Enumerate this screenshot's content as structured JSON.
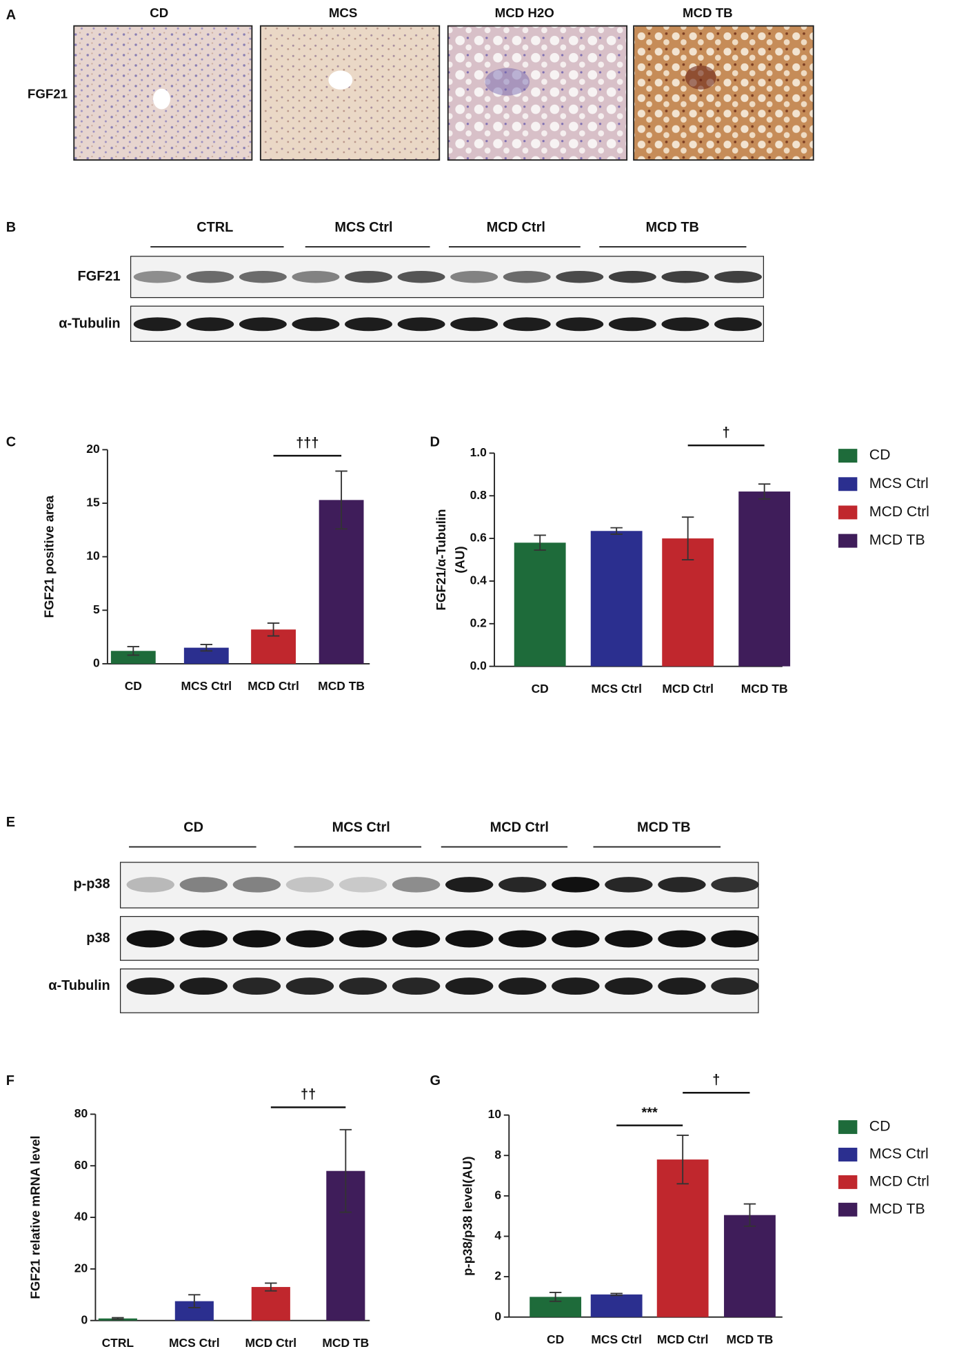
{
  "panel_labels": [
    "A",
    "B",
    "C",
    "D",
    "E",
    "F",
    "G"
  ],
  "histology": {
    "columns": [
      "CD",
      "MCS",
      "MCD H2O",
      "MCD TB"
    ],
    "row_label": "FGF21"
  },
  "blot_b": {
    "groups": [
      "CTRL",
      "MCS Ctrl",
      "MCD Ctrl",
      "MCD TB"
    ],
    "rows": [
      "FGF21",
      "α-Tubulin"
    ]
  },
  "blot_e": {
    "groups": [
      "CD",
      "MCS Ctrl",
      "MCD Ctrl",
      "MCD TB"
    ],
    "rows": [
      "p-p38",
      "p38",
      "α-Tubulin"
    ]
  },
  "chart_data": [
    {
      "type": "bar",
      "ylabel": "FGF21 positive area",
      "categories": [
        "CD",
        "MCS Ctrl",
        "MCD Ctrl",
        "MCD TB"
      ],
      "values": [
        1.2,
        1.5,
        3.2,
        15.3
      ],
      "errors": [
        0.4,
        0.3,
        0.6,
        2.7
      ],
      "colors": [
        "#1e6b3a",
        "#2b2f8f",
        "#c0272d",
        "#3f1d5a"
      ],
      "ylim": [
        0,
        20
      ],
      "yticks": [
        0,
        5,
        10,
        15,
        20
      ],
      "annotations": [
        "†††"
      ]
    },
    {
      "type": "bar",
      "ylabel": [
        "FGF21/α-Tubulin",
        "(AU)"
      ],
      "categories": [
        "CD",
        "MCS Ctrl",
        "MCD Ctrl",
        "MCD TB"
      ],
      "values": [
        0.58,
        0.635,
        0.6,
        0.82
      ],
      "errors": [
        0.035,
        0.015,
        0.1,
        0.035
      ],
      "colors": [
        "#1e6b3a",
        "#2b2f8f",
        "#c0272d",
        "#3f1d5a"
      ],
      "ylim": [
        0,
        1
      ],
      "yticks": [
        {
          "value": 0,
          "label": "0.0"
        },
        0.2,
        0.4,
        0.6,
        0.8,
        {
          "value": 1,
          "label": "1.0"
        }
      ],
      "annotations": [
        "†"
      ],
      "legend": [
        "CD",
        "MCS Ctrl",
        "MCD Ctrl",
        "MCD TB"
      ]
    },
    {
      "type": "bar",
      "ylabel": "FGF21 relative mRNA level",
      "categories": [
        "CTRL",
        "MCS Ctrl",
        "MCD Ctrl",
        "MCD TB"
      ],
      "values": [
        0.8,
        7.5,
        13,
        58
      ],
      "errors": [
        0.3,
        2.5,
        1.5,
        16
      ],
      "colors": [
        "#1e6b3a",
        "#2b2f8f",
        "#c0272d",
        "#3f1d5a"
      ],
      "ylim": [
        0,
        80
      ],
      "yticks": [
        0,
        20,
        40,
        60,
        80
      ],
      "annotations": [
        "††"
      ]
    },
    {
      "type": "bar",
      "ylabel": "p-p38/p38 level(AU)",
      "categories": [
        "CD",
        "MCS Ctrl",
        "MCD Ctrl",
        "MCD TB"
      ],
      "values": [
        1.0,
        1.12,
        7.8,
        5.05
      ],
      "errors": [
        0.22,
        0.05,
        1.2,
        0.55
      ],
      "colors": [
        "#1e6b3a",
        "#2b2f8f",
        "#c0272d",
        "#3f1d5a"
      ],
      "ylim": [
        0,
        10
      ],
      "yticks": [
        0,
        2,
        4,
        6,
        8,
        10
      ],
      "annotations": [
        "***",
        "†"
      ],
      "legend": [
        "CD",
        "MCS Ctrl",
        "MCD Ctrl",
        "MCD TB"
      ]
    }
  ]
}
